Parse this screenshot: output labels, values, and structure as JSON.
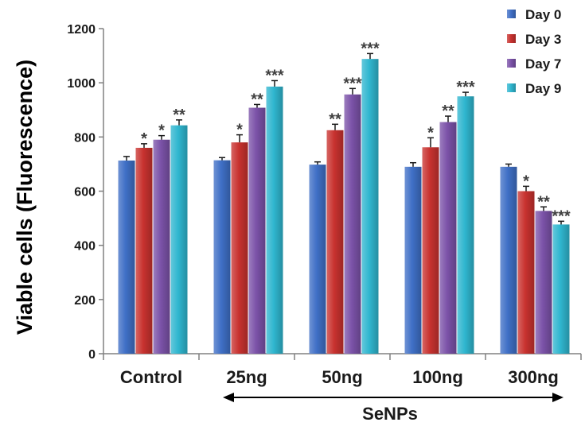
{
  "chart_data": {
    "type": "bar",
    "title": "",
    "xlabel": "",
    "ylabel": "Viable cells (Fluorescence)",
    "ylim": [
      0,
      1200
    ],
    "yticks": [
      0,
      200,
      400,
      600,
      800,
      1000,
      1200
    ],
    "categories": [
      "Control",
      "25ng",
      "50ng",
      "100ng",
      "300ng"
    ],
    "group_label": "SeNPs",
    "legend_position": "top-right",
    "series": [
      {
        "name": "Day 0",
        "color": "#3f6fc6",
        "values": [
          713,
          714,
          698,
          690,
          690
        ],
        "errors": [
          15,
          10,
          10,
          15,
          10
        ],
        "significance": [
          "",
          "",
          "",
          "",
          ""
        ]
      },
      {
        "name": "Day 3",
        "color": "#c8322f",
        "values": [
          760,
          780,
          825,
          762,
          600
        ],
        "errors": [
          15,
          28,
          22,
          35,
          18
        ],
        "significance": [
          "*",
          "*",
          "**",
          "*",
          "*"
        ]
      },
      {
        "name": "Day 7",
        "color": "#7b52a8",
        "values": [
          790,
          908,
          957,
          855,
          527
        ],
        "errors": [
          15,
          12,
          22,
          22,
          15
        ],
        "significance": [
          "*",
          "**",
          "***",
          "**",
          "**"
        ]
      },
      {
        "name": "Day 9",
        "color": "#2fb6cf",
        "values": [
          843,
          986,
          1088,
          950,
          477
        ],
        "errors": [
          20,
          22,
          20,
          15,
          12
        ],
        "significance": [
          "**",
          "***",
          "***",
          "***",
          "***"
        ]
      }
    ]
  }
}
